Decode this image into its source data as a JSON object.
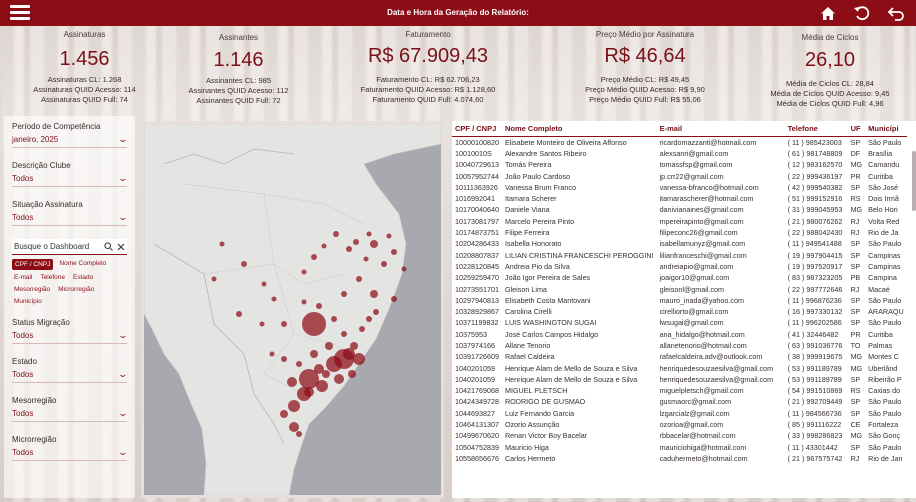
{
  "header": {
    "report_date_label": "Data e Hora da Geração do Relatório:",
    "icons": [
      "menu-icon",
      "home-icon",
      "back-icon",
      "return-icon"
    ]
  },
  "colors": {
    "brand": "#8c0d16",
    "text": "#7a1018"
  },
  "kpis": [
    {
      "label": "Assinaturas",
      "value": "1.456",
      "subs": [
        "Assinaturas CL: 1.268",
        "Assinaturas QUID Acesso: 114",
        "Assinaturas QUID Full: 74"
      ]
    },
    {
      "label": "Assinantes",
      "value": "1.146",
      "subs": [
        "Assinantes CL: 985",
        "Assinantes QUID Acesso: 112",
        "Assinantes QUID Full: 72"
      ]
    },
    {
      "label": "Faturamento",
      "value": "R$ 67.909,43",
      "subs": [
        "Faturamento CL: R$ 62.706,23",
        "Faturamento QUID Acesso: R$ 1.128,60",
        "Faturamento QUID Full: 4.074,60"
      ]
    },
    {
      "label": "Preço Médio por Assinatura",
      "value": "R$ 46,64",
      "subs": [
        "Preço Médio CL: R$ 49,45",
        "Preço Médio QUID Acesso: R$ 9,90",
        "Preço Médio QUID Full: R$ 55,06"
      ]
    },
    {
      "label": "Média de Ciclos",
      "value": "26,10",
      "subs": [
        "Média de Ciclos CL: 28,84",
        "Média de Ciclos QUID Acesso: 9,45",
        "Média de Ciclos QUID Full: 4,96"
      ]
    }
  ],
  "filters": {
    "periodo": {
      "label": "Período de Competência",
      "value": "janeiro, 2025"
    },
    "descricao": {
      "label": "Descrição Clube",
      "value": "Todos"
    },
    "situacao": {
      "label": "Situação Assinatura",
      "value": "Todos"
    },
    "search": {
      "placeholder": "Busque o Dashboard"
    },
    "chips": [
      "CPF / CNPJ",
      "Nome Completo",
      "E-mail",
      "Telefone",
      "Estado",
      "Mesorregião",
      "Microrregião",
      "Município"
    ],
    "status_migracao": {
      "label": "Status Migração",
      "value": "Todos"
    },
    "estado": {
      "label": "Estado",
      "value": "Todos"
    },
    "mesorregiao": {
      "label": "Mesorregião",
      "value": "Todos"
    },
    "microrregiao": {
      "label": "Microrregião",
      "value": "Todos"
    }
  },
  "table": {
    "columns": [
      "CPF / CNPJ",
      "Nome Completo",
      "E-mail",
      "Telefone",
      "UF",
      "Municípi"
    ],
    "rows": [
      [
        "10000100820",
        "Elisabete Monteiro de Oliveira Affonso",
        "ricardomazzanti@hotmail.com",
        "( 11 ) 985423003",
        "SP",
        "São Paulo"
      ],
      [
        "10010010S",
        "Alexandre Santos Ribeiro",
        "alexsanri@gmail.com",
        "( 61 ) 981748809",
        "DF",
        "Brasília"
      ],
      [
        "10040729613",
        "Tomás Pereira",
        "tomassfsp@gmail.com",
        "( 12 ) 983162570",
        "MG",
        "Camandu"
      ],
      [
        "10057952744",
        "João Paulo Cardoso",
        "jp.crr22@gmail.com",
        "( 22 ) 999436197",
        "PR",
        "Curitiba"
      ],
      [
        "10111363926",
        "Vanessa Brum Franco",
        "vanessa-bfranco@hotmail.com",
        "( 42 ) 999540382",
        "SP",
        "São José"
      ],
      [
        "1016992041",
        "Itamara Scherer",
        "itamarascherer@hotmail.com",
        "( 51 ) 999152916",
        "RS",
        "Dois Irmã"
      ],
      [
        "10170040640",
        "Daniele Viana",
        "danivianaines@gmail.com",
        "( 31 ) 999045953",
        "MG",
        "Belo Hori"
      ],
      [
        "10173081797",
        "Marcelo Pereira Pinto",
        "mpereirapinto@gmail.com",
        "( 21 ) 980076262",
        "RJ",
        "Volta Red"
      ],
      [
        "10174873751",
        "Filipe Ferreira",
        "filipeconc26@gmail.com",
        "( 22 ) 988042430",
        "RJ",
        "Rio de Ja"
      ],
      [
        "10204286433",
        "Isabella Honorato",
        "isabellamunyz@gmail.com",
        "( 11 ) 949541488",
        "SP",
        "São Paulo"
      ],
      [
        "10208807837",
        "LILIAN CRISTINA FRANCESCHI PEROGGINI",
        "lilianfranceschi@gmail.com",
        "( 19 ) 997904415",
        "SP",
        "Campinas"
      ],
      [
        "10228120845",
        "Andreia Pio da Silva",
        "andreiapio@gmail.com",
        "( 19 ) 997520917",
        "SP",
        "Campinas"
      ],
      [
        "10259259470",
        "João Igor Pereira de Sales",
        "joaigor10@gmail.com",
        "( 83 ) 987323205",
        "PB",
        "Campina"
      ],
      [
        "10273551701",
        "Gleison Lima",
        "gleisonl@gmail.com",
        "( 22 ) 997772646",
        "RJ",
        "Macaé"
      ],
      [
        "10297940813",
        "Elisabeth Costa Mantovani",
        "mauro_inada@yahoo.com",
        "( 11 ) 996876236",
        "SP",
        "São Paulo"
      ],
      [
        "10328929867",
        "Carolina Cirelli",
        "cirelliorto@gmail.com",
        "( 16 ) 997330132",
        "SP",
        "ARARAQU"
      ],
      [
        "10371199832",
        "LUIS WASHINGTON SUGAI",
        "lwsugai@gmail.com",
        "( 11 ) 996202586",
        "SP",
        "São Paulo"
      ],
      [
        "10375953",
        "José Carlos Campos Hidalgo",
        "ana_hidalgo@hotmail.com",
        "( 41 ) 32446482",
        "PR",
        "Curitiba"
      ],
      [
        "1037974166",
        "Allane Tenorio",
        "allanetenorio@hotmail.com",
        "( 63 ) 991036776",
        "TO",
        "Palmas"
      ],
      [
        "10391726609",
        "Rafael Caldeira",
        "rafaelcaldeira.adv@outlook.com",
        "( 38 ) 999919675",
        "MG",
        "Montes C"
      ],
      [
        "1040201059",
        "Henrique Alam de Mello de Souza e Silva",
        "henriquedesouzaesilva@gmail.com",
        "( 53 ) 991189789",
        "MG",
        "Uberlând"
      ],
      [
        "1040201059",
        "Henrique Alam de Mello de Souza e Silva",
        "henriquedesouzaesilva@gmail.com",
        "( 53 ) 991189789",
        "SP",
        "Ribeirão P"
      ],
      [
        "10421769068",
        "MIGUEL PLETSCH",
        "miguelpletsch@gmail.com",
        "( 54 ) 991510869",
        "RS",
        "Caxias do"
      ],
      [
        "10424349728",
        "RODRIGO DE GUSMAO",
        "gusmaorc@gmail.com",
        "( 21 ) 992709449",
        "SP",
        "São Paulo"
      ],
      [
        "1044693827",
        "Luiz Fernando Garcia",
        "lzgarcialz@gmail.com",
        "( 11 ) 984566736",
        "SP",
        "São Paulo"
      ],
      [
        "10464131307",
        "Ozorio Assunção",
        "ozorioa@gmail.com",
        "( 85 ) 991116222",
        "CE",
        "Fortaleza"
      ],
      [
        "10499670620",
        "Renan Victor Boy Bacelar",
        "rbbacelar@hotmail.com",
        "( 33 ) 998286823",
        "MG",
        "São Gonç"
      ],
      [
        "10504752839",
        "Mauricio Higa",
        "mauriciohiga@hotmail.com",
        "( 11 ) 43301442",
        "SP",
        "São Paulo"
      ],
      [
        "10558656676",
        "Carlos Hermeto",
        "caduhermeto@hotmail.com",
        "( 21 ) 967575742",
        "RJ",
        "Rio de Jan"
      ]
    ]
  }
}
